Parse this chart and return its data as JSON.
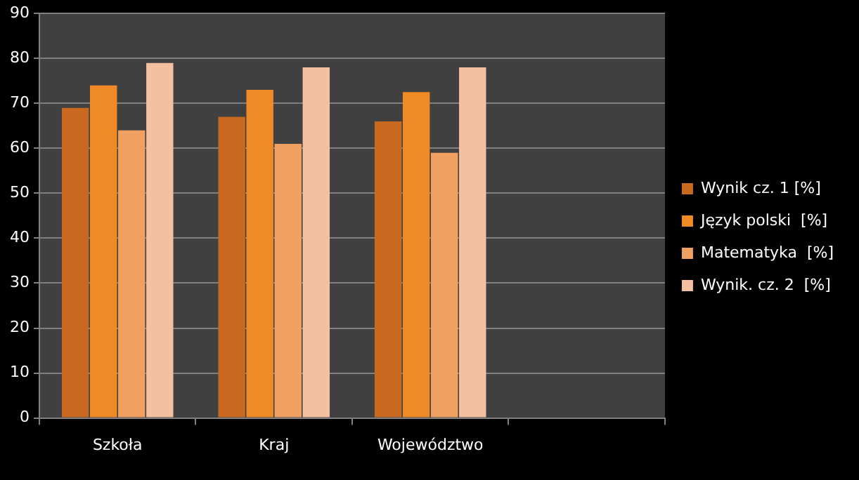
{
  "chart_data": {
    "type": "bar",
    "categories": [
      "Szkoła",
      "Kraj",
      "Województwo",
      null
    ],
    "series": [
      {
        "name": "Wynik cz. 1 [%]",
        "color": "#c8691f",
        "values": [
          69,
          67,
          66,
          null
        ]
      },
      {
        "name": "Język polski  [%]",
        "color": "#f08a24",
        "values": [
          74,
          73,
          72.5,
          null
        ]
      },
      {
        "name": "Matematyka  [%]",
        "color": "#f0a060",
        "values": [
          64,
          61,
          59,
          null
        ]
      },
      {
        "name": "Wynik. cz. 2  [%]",
        "color": "#f5c0a0",
        "values": [
          79,
          78,
          78,
          null
        ]
      }
    ],
    "ylim": [
      0,
      90
    ],
    "yticks": [
      0,
      10,
      20,
      30,
      40,
      50,
      60,
      70,
      80,
      90
    ],
    "grid": "y",
    "legend": "right"
  }
}
